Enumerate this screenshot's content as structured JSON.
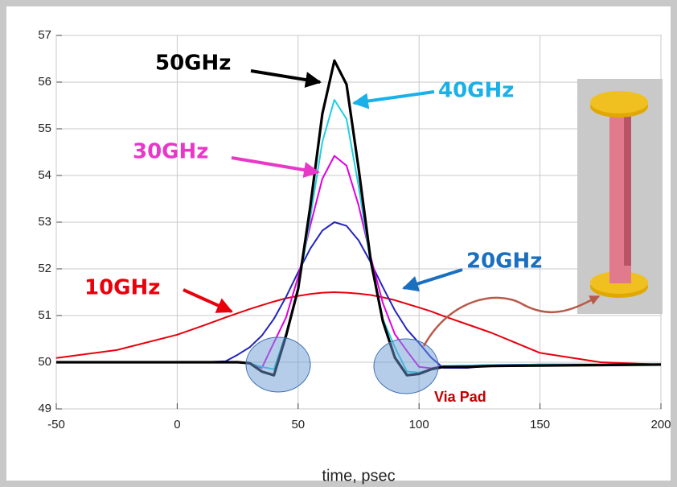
{
  "chart_data": {
    "type": "line",
    "x_label": "time, psec",
    "annotations": [
      "Via Pad"
    ],
    "x": [
      -50,
      -25,
      0,
      10,
      20,
      25,
      30,
      35,
      40,
      45,
      50,
      55,
      60,
      65,
      70,
      75,
      80,
      85,
      90,
      95,
      100,
      105,
      110,
      120,
      130,
      150,
      175,
      200
    ],
    "series": [
      {
        "name": "10GHz",
        "color": "#e8000c",
        "values": [
          50.09,
          50.26,
          50.59,
          50.77,
          50.96,
          51.05,
          51.14,
          51.22,
          51.3,
          51.37,
          51.42,
          51.46,
          51.49,
          51.5,
          51.49,
          51.47,
          51.44,
          51.39,
          51.33,
          51.25,
          51.17,
          51.09,
          50.99,
          50.81,
          50.63,
          50.2,
          50.0,
          49.95
        ]
      },
      {
        "name": "20GHz",
        "color": "#2323c0",
        "values": [
          50.0,
          50.0,
          50.0,
          50.0,
          50.02,
          50.16,
          50.32,
          50.57,
          50.93,
          51.4,
          51.93,
          52.43,
          52.82,
          53.0,
          52.92,
          52.61,
          52.14,
          51.61,
          51.11,
          50.7,
          50.41,
          50.1,
          49.88,
          49.88,
          49.93,
          49.95,
          49.95,
          49.95
        ]
      },
      {
        "name": "30GHz",
        "color": "#e000e0",
        "values": [
          50.0,
          50.0,
          50.0,
          50.0,
          50.0,
          50.0,
          49.97,
          49.88,
          50.42,
          50.96,
          51.83,
          52.92,
          53.93,
          54.42,
          54.21,
          53.36,
          52.26,
          51.27,
          50.6,
          50.24,
          49.9,
          49.87,
          49.92,
          49.93,
          49.94,
          49.95,
          49.95,
          49.95
        ]
      },
      {
        "name": "40GHz",
        "color": "#20cfe0",
        "values": [
          50.0,
          50.0,
          50.0,
          50.0,
          50.0,
          50.0,
          49.98,
          49.9,
          49.85,
          50.62,
          51.57,
          53.08,
          54.72,
          55.62,
          55.21,
          53.77,
          52.12,
          50.93,
          50.32,
          49.8,
          49.78,
          49.85,
          49.92,
          49.93,
          49.94,
          49.95,
          49.95,
          49.95
        ]
      },
      {
        "name": "50GHz",
        "color": "#000000",
        "values": [
          50.0,
          50.0,
          50.0,
          50.0,
          50.0,
          50.0,
          49.98,
          49.8,
          49.72,
          50.57,
          51.57,
          53.32,
          55.32,
          56.46,
          55.95,
          54.15,
          52.19,
          50.88,
          50.1,
          49.72,
          49.75,
          49.85,
          49.9,
          49.9,
          49.92,
          49.93,
          49.94,
          49.95
        ]
      }
    ],
    "xlim": [
      -50,
      200
    ],
    "xticks": [
      -50,
      0,
      50,
      100,
      150,
      200
    ],
    "ylim": [
      49,
      57
    ],
    "yticks": [
      49,
      50,
      51,
      52,
      53,
      54,
      55,
      56,
      57
    ],
    "grid": true
  }
}
